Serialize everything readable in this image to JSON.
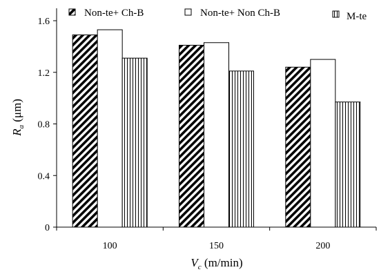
{
  "chart_data": {
    "type": "bar",
    "title": "",
    "xlabel": {
      "symbol": "V",
      "subscript": "c",
      "unit": " (m/min)"
    },
    "ylabel": {
      "symbol": "R",
      "subscript": "a",
      "unit": " (μm)"
    },
    "categories": [
      "100",
      "150",
      "200"
    ],
    "ylim": [
      0,
      1.6
    ],
    "yticks": [
      "0",
      "0.4",
      "0.8",
      "1.2",
      "1.6"
    ],
    "grid": false,
    "legend_position": "top",
    "series": [
      {
        "name": "Non-te+ Ch-B",
        "values": [
          1.49,
          1.41,
          1.24
        ],
        "pattern": "diagonal-hatch"
      },
      {
        "name": "Non-te+ Non Ch-B",
        "values": [
          1.53,
          1.43,
          1.3
        ],
        "pattern": "solid-white"
      },
      {
        "name": "M-te",
        "values": [
          1.31,
          1.21,
          0.97
        ],
        "pattern": "vertical-lines"
      }
    ]
  }
}
